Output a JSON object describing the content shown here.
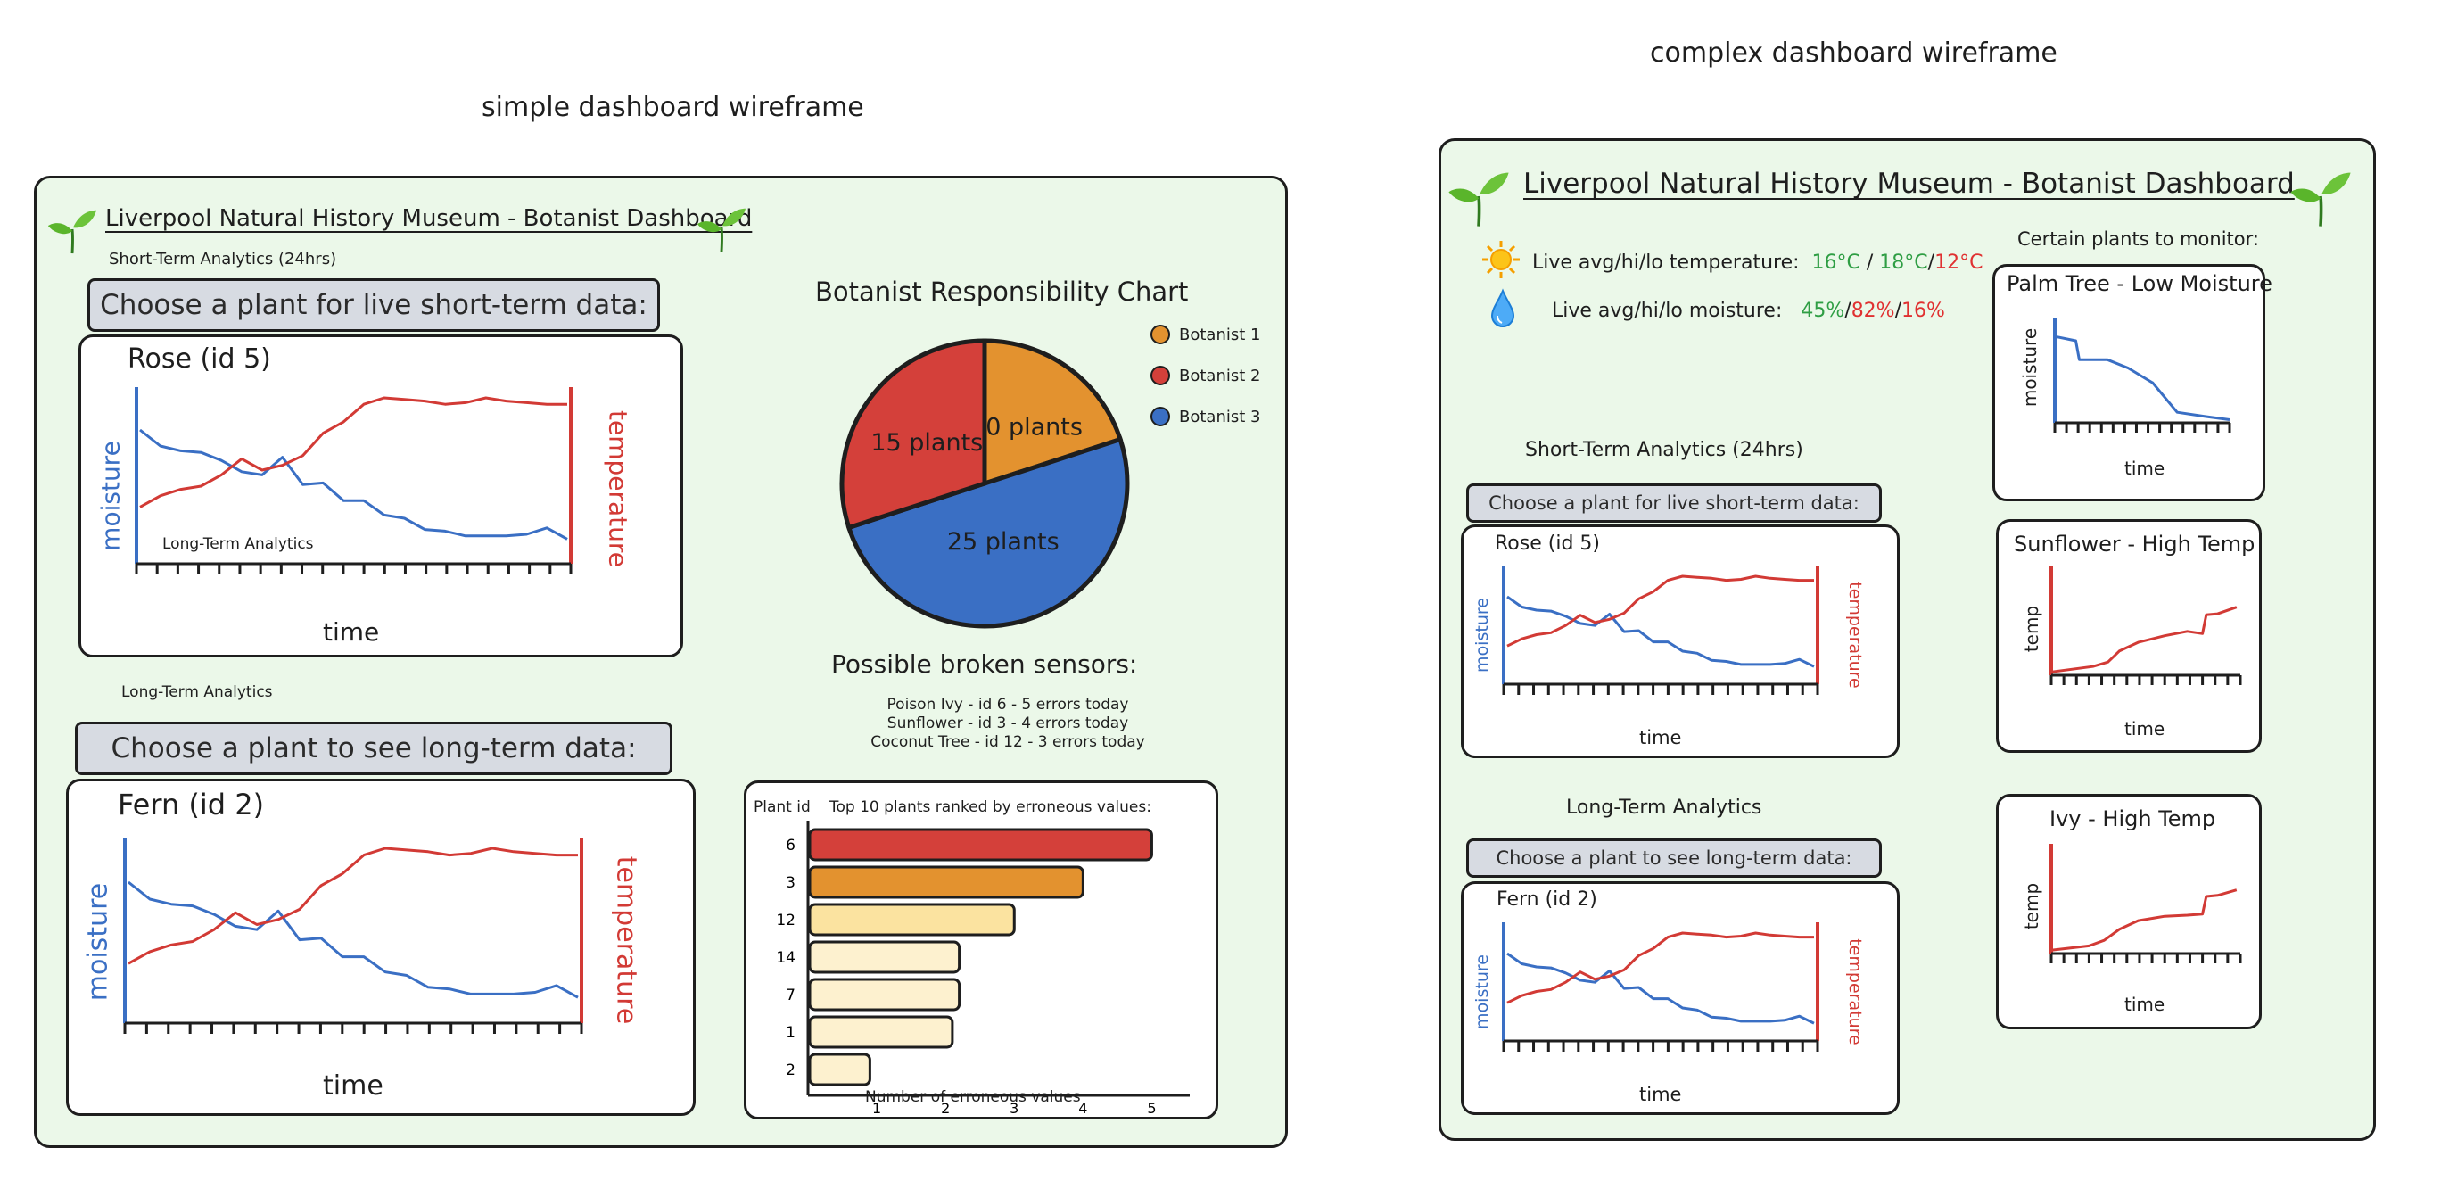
{
  "page_titles": {
    "simple": "simple dashboard wireframe",
    "complex": "complex dashboard wireframe"
  },
  "colors": {
    "panel_bg": "#ebf8e9",
    "moisture": "#3a6fc4",
    "temperature": "#d23a35",
    "good": "#2f9e44",
    "bad": "#e03131",
    "botanist1": "#e3922f",
    "botanist2": "#d4403a",
    "botanist3": "#3a6fc4"
  },
  "simple": {
    "title": "Liverpool Natural History Museum - Botanist Dashboard",
    "short_term_label": "Short-Term Analytics (24hrs)",
    "short_term_button": "Choose a plant for live short-term data:",
    "short_chart": {
      "plant": "Rose (id 5)",
      "ylabel_left": "moisture",
      "ylabel_right": "temperature",
      "xlabel": "time",
      "inner_note": "Long-Term Analytics"
    },
    "long_term_label": "Long-Term Analytics",
    "long_term_button": "Choose a plant to see long-term data:",
    "long_chart": {
      "plant": "Fern (id 2)",
      "ylabel_left": "moisture",
      "ylabel_right": "temperature",
      "xlabel": "time"
    },
    "pie": {
      "title": "Botanist Responsibility Chart",
      "slices": [
        {
          "label": "10 plants",
          "value": 10,
          "color": "#e3922f"
        },
        {
          "label": "25 plants",
          "value": 25,
          "color": "#3a6fc4"
        },
        {
          "label": "15 plants",
          "value": 15,
          "color": "#d4403a"
        }
      ],
      "legend": [
        {
          "label": "Botanist 1",
          "color": "#e3922f"
        },
        {
          "label": "Botanist 2",
          "color": "#d4403a"
        },
        {
          "label": "Botanist 3",
          "color": "#3a6fc4"
        }
      ]
    },
    "broken": {
      "title": "Possible broken sensors:",
      "lines": [
        "Poison Ivy - id 6 - 5 errors today",
        "Sunflower - id 3 - 4 errors today",
        "Coconut Tree - id 12 - 3 errors today"
      ]
    },
    "bar": {
      "ylabel": "Plant id",
      "title": "Top 10 plants ranked by erroneous values:",
      "xlabel": "Number of erroneous values",
      "ids": [
        "6",
        "3",
        "12",
        "14",
        "7",
        "1",
        "2"
      ],
      "ticks": [
        "1",
        "2",
        "3",
        "4",
        "5"
      ]
    }
  },
  "complex": {
    "title": "Liverpool Natural History Museum - Botanist Dashboard",
    "temp_label": "Live avg/hi/lo temperature:",
    "temp_avg": "16°C",
    "temp_hi": "18°C",
    "temp_lo": "12°C",
    "moist_label": "Live avg/hi/lo moisture:",
    "moist_avg": "45%",
    "moist_hi": "82%",
    "moist_lo": "16%",
    "monitor_label": "Certain plants to monitor:",
    "short_term_label": "Short-Term Analytics (24hrs)",
    "short_term_button": "Choose a plant for live short-term data:",
    "short_chart": {
      "plant": "Rose (id 5)",
      "ylabel_left": "moisture",
      "ylabel_right": "temperature",
      "xlabel": "time"
    },
    "long_term_label": "Long-Term Analytics",
    "long_term_button": "Choose a plant to see long-term data:",
    "long_chart": {
      "plant": "Fern (id 2)",
      "ylabel_left": "moisture",
      "ylabel_right": "temperature",
      "xlabel": "time"
    },
    "monitor": [
      {
        "title": "Palm Tree - Low Moisture",
        "ylabel": "moisture",
        "xlabel": "time"
      },
      {
        "title": "Sunflower - High Temp",
        "ylabel": "temp",
        "xlabel": "time"
      },
      {
        "title": "Ivy - High Temp",
        "ylabel": "temp",
        "xlabel": "time"
      }
    ]
  },
  "chart_data": [
    {
      "type": "pie",
      "title": "Botanist Responsibility Chart",
      "categories": [
        "Botanist 1",
        "Botanist 3",
        "Botanist 2"
      ],
      "values": [
        10,
        25,
        15
      ]
    },
    {
      "type": "bar",
      "title": "Top 10 plants ranked by erroneous values:",
      "xlabel": "Number of erroneous values",
      "ylabel": "Plant id",
      "categories": [
        "6",
        "3",
        "12",
        "14",
        "7",
        "1",
        "2"
      ],
      "values": [
        5,
        4,
        3,
        2.2,
        2.2,
        2.1,
        0.9
      ],
      "xlim": [
        0,
        5.5
      ]
    },
    {
      "type": "line",
      "xlabel": "time",
      "series": [
        {
          "name": "moisture",
          "values": [
            80,
            70,
            67,
            66,
            61,
            54,
            52,
            63,
            46,
            47,
            36,
            36,
            27,
            25,
            18,
            17,
            14,
            14,
            14,
            15,
            19,
            12
          ]
        },
        {
          "name": "temperature",
          "values": [
            32,
            39,
            43,
            45,
            52,
            62,
            55,
            58,
            64,
            78,
            85,
            96,
            100,
            99,
            98,
            96,
            97,
            100,
            98,
            97,
            96,
            96
          ]
        }
      ]
    }
  ]
}
